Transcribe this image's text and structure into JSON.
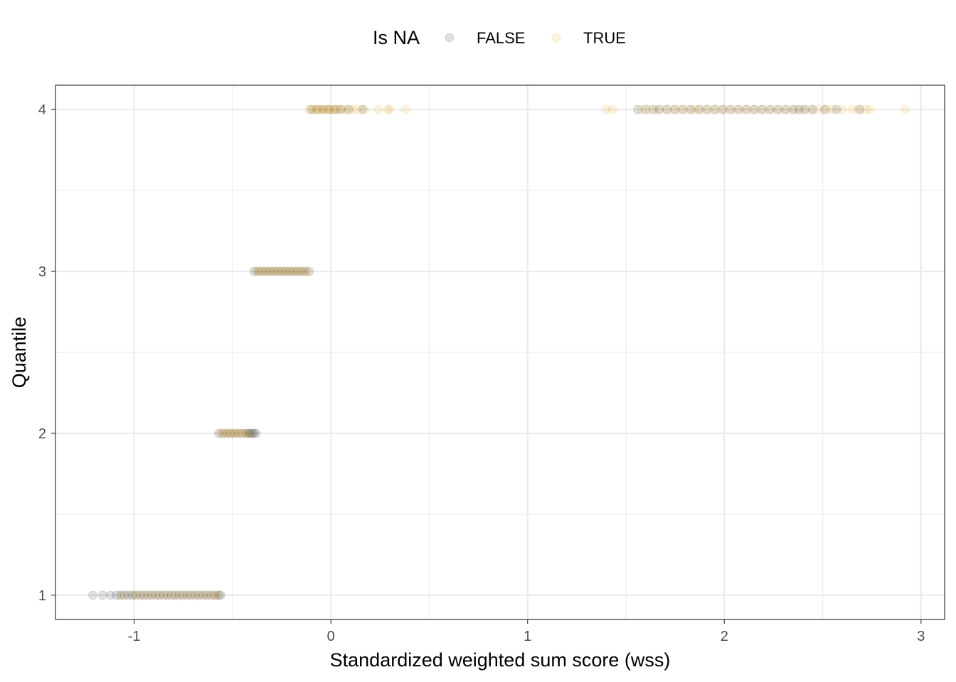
{
  "chart_data": {
    "type": "scatter",
    "title": "",
    "xlabel": "Standardized weighted sum score (wss)",
    "ylabel": "Quantile",
    "xlim": [
      -1.4,
      3.12
    ],
    "ylim": [
      0.85,
      4.15
    ],
    "x_ticks": [
      "-1",
      "0",
      "1",
      "2",
      "3"
    ],
    "y_ticks": [
      "1",
      "2",
      "3",
      "4"
    ],
    "grid": true,
    "legend": {
      "title": "Is NA",
      "position": "top",
      "entries": [
        {
          "label": "FALSE",
          "color": "#000000",
          "alpha": 0.12
        },
        {
          "label": "TRUE",
          "color": "#E69F00",
          "alpha": 0.12
        }
      ]
    },
    "series": [
      {
        "name": "FALSE",
        "color": "#000000",
        "points": [
          [
            -1.21,
            1
          ],
          [
            -1.16,
            1
          ],
          [
            -1.12,
            1
          ],
          [
            -1.09,
            1
          ],
          [
            -1.07,
            1
          ],
          [
            -1.05,
            1
          ],
          [
            -1.03,
            1
          ],
          [
            -1.01,
            1
          ],
          [
            -0.99,
            1
          ],
          [
            -0.97,
            1
          ],
          [
            -0.95,
            1
          ],
          [
            -0.93,
            1
          ],
          [
            -0.91,
            1
          ],
          [
            -0.89,
            1
          ],
          [
            -0.87,
            1
          ],
          [
            -0.85,
            1
          ],
          [
            -0.83,
            1
          ],
          [
            -0.81,
            1
          ],
          [
            -0.79,
            1
          ],
          [
            -0.77,
            1
          ],
          [
            -0.75,
            1
          ],
          [
            -0.73,
            1
          ],
          [
            -0.71,
            1
          ],
          [
            -0.69,
            1
          ],
          [
            -0.67,
            1
          ],
          [
            -0.65,
            1
          ],
          [
            -0.63,
            1
          ],
          [
            -0.61,
            1
          ],
          [
            -0.59,
            1
          ],
          [
            -0.57,
            1
          ],
          [
            -0.56,
            1
          ],
          [
            -0.57,
            2
          ],
          [
            -0.55,
            2
          ],
          [
            -0.53,
            2
          ],
          [
            -0.51,
            2
          ],
          [
            -0.49,
            2
          ],
          [
            -0.47,
            2
          ],
          [
            -0.45,
            2
          ],
          [
            -0.43,
            2
          ],
          [
            -0.42,
            2
          ],
          [
            -0.41,
            2
          ],
          [
            -0.4,
            2
          ],
          [
            -0.39,
            2
          ],
          [
            -0.38,
            2
          ],
          [
            -0.39,
            3
          ],
          [
            -0.37,
            3
          ],
          [
            -0.35,
            3
          ],
          [
            -0.33,
            3
          ],
          [
            -0.31,
            3
          ],
          [
            -0.29,
            3
          ],
          [
            -0.27,
            3
          ],
          [
            -0.25,
            3
          ],
          [
            -0.23,
            3
          ],
          [
            -0.21,
            3
          ],
          [
            -0.19,
            3
          ],
          [
            -0.17,
            3
          ],
          [
            -0.15,
            3
          ],
          [
            -0.13,
            3
          ],
          [
            -0.11,
            3
          ],
          [
            -0.1,
            4
          ],
          [
            -0.07,
            4
          ],
          [
            -0.04,
            4
          ],
          [
            -0.01,
            4
          ],
          [
            0.02,
            4
          ],
          [
            0.05,
            4
          ],
          [
            0.09,
            4
          ],
          [
            0.16,
            4
          ],
          [
            1.56,
            4
          ],
          [
            1.6,
            4
          ],
          [
            1.64,
            4
          ],
          [
            1.67,
            4
          ],
          [
            1.71,
            4
          ],
          [
            1.75,
            4
          ],
          [
            1.79,
            4
          ],
          [
            1.83,
            4
          ],
          [
            1.87,
            4
          ],
          [
            1.91,
            4
          ],
          [
            1.95,
            4
          ],
          [
            1.99,
            4
          ],
          [
            2.03,
            4
          ],
          [
            2.07,
            4
          ],
          [
            2.11,
            4
          ],
          [
            2.15,
            4
          ],
          [
            2.19,
            4
          ],
          [
            2.23,
            4
          ],
          [
            2.27,
            4
          ],
          [
            2.31,
            4
          ],
          [
            2.35,
            4
          ],
          [
            2.38,
            4
          ],
          [
            2.41,
            4
          ],
          [
            2.45,
            4
          ],
          [
            2.51,
            4
          ],
          [
            2.57,
            4
          ],
          [
            2.69,
            4
          ]
        ]
      },
      {
        "name": "TRUE",
        "color": "#E69F00",
        "points": [
          [
            -1.06,
            1
          ],
          [
            -1.0,
            1
          ],
          [
            -0.96,
            1
          ],
          [
            -0.92,
            1
          ],
          [
            -0.88,
            1
          ],
          [
            -0.84,
            1
          ],
          [
            -0.8,
            1
          ],
          [
            -0.76,
            1
          ],
          [
            -0.72,
            1
          ],
          [
            -0.68,
            1
          ],
          [
            -0.64,
            1
          ],
          [
            -0.6,
            1
          ],
          [
            -0.58,
            1
          ],
          [
            -0.56,
            2
          ],
          [
            -0.54,
            2
          ],
          [
            -0.52,
            2
          ],
          [
            -0.5,
            2
          ],
          [
            -0.48,
            2
          ],
          [
            -0.46,
            2
          ],
          [
            -0.44,
            2
          ],
          [
            -0.42,
            2
          ],
          [
            -0.38,
            3
          ],
          [
            -0.36,
            3
          ],
          [
            -0.34,
            3
          ],
          [
            -0.32,
            3
          ],
          [
            -0.3,
            3
          ],
          [
            -0.28,
            3
          ],
          [
            -0.26,
            3
          ],
          [
            -0.24,
            3
          ],
          [
            -0.22,
            3
          ],
          [
            -0.2,
            3
          ],
          [
            -0.18,
            3
          ],
          [
            -0.16,
            3
          ],
          [
            -0.14,
            3
          ],
          [
            -0.12,
            3
          ],
          [
            -0.11,
            4
          ],
          [
            -0.09,
            4
          ],
          [
            -0.08,
            4
          ],
          [
            -0.06,
            4
          ],
          [
            -0.05,
            4
          ],
          [
            -0.03,
            4
          ],
          [
            -0.02,
            4
          ],
          [
            0.0,
            4
          ],
          [
            0.01,
            4
          ],
          [
            0.03,
            4
          ],
          [
            0.04,
            4
          ],
          [
            0.06,
            4
          ],
          [
            0.08,
            4
          ],
          [
            0.11,
            4
          ],
          [
            0.13,
            4
          ],
          [
            0.17,
            4
          ],
          [
            0.24,
            4
          ],
          [
            0.29,
            4
          ],
          [
            0.3,
            4
          ],
          [
            0.38,
            4
          ],
          [
            1.4,
            4
          ],
          [
            1.43,
            4
          ],
          [
            1.58,
            4
          ],
          [
            1.62,
            4
          ],
          [
            1.66,
            4
          ],
          [
            1.7,
            4
          ],
          [
            1.74,
            4
          ],
          [
            1.78,
            4
          ],
          [
            1.82,
            4
          ],
          [
            1.85,
            4
          ],
          [
            1.88,
            4
          ],
          [
            1.92,
            4
          ],
          [
            1.96,
            4
          ],
          [
            2.0,
            4
          ],
          [
            2.04,
            4
          ],
          [
            2.08,
            4
          ],
          [
            2.12,
            4
          ],
          [
            2.16,
            4
          ],
          [
            2.2,
            4
          ],
          [
            2.24,
            4
          ],
          [
            2.28,
            4
          ],
          [
            2.32,
            4
          ],
          [
            2.36,
            4
          ],
          [
            2.4,
            4
          ],
          [
            2.44,
            4
          ],
          [
            2.48,
            4
          ],
          [
            2.52,
            4
          ],
          [
            2.55,
            4
          ],
          [
            2.6,
            4
          ],
          [
            2.65,
            4
          ],
          [
            2.68,
            4
          ],
          [
            2.72,
            4
          ],
          [
            2.74,
            4
          ],
          [
            2.92,
            4
          ]
        ]
      }
    ]
  }
}
